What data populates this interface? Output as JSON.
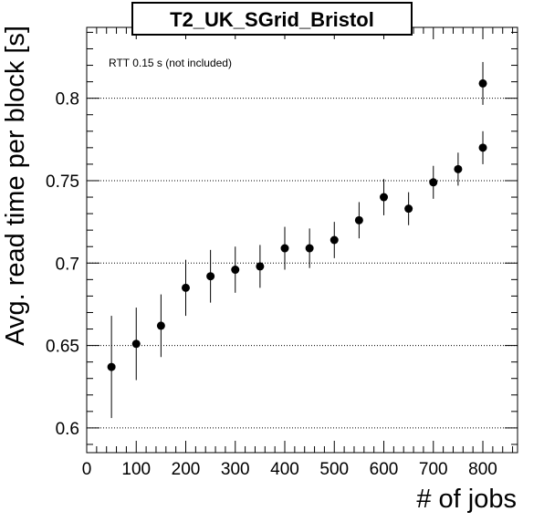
{
  "chart_data": {
    "type": "scatter",
    "title": "T2_UK_SGrid_Bristol",
    "xlabel": "# of jobs",
    "ylabel": "Avg. read time per block [s]",
    "annotation": "RTT 0.15 s (not included)",
    "xlim": [
      0,
      870
    ],
    "ylim": [
      0.585,
      0.843
    ],
    "x_ticks": [
      0,
      100,
      200,
      300,
      400,
      500,
      600,
      700,
      800
    ],
    "y_ticks": [
      0.6,
      0.65,
      0.7,
      0.75,
      0.8
    ],
    "y_tick_labels": [
      "0.6",
      "0.65",
      "0.7",
      "0.75",
      "0.8"
    ],
    "grid": "horizontal dotted",
    "points": [
      {
        "x": 50,
        "y": 0.637,
        "err": 0.031
      },
      {
        "x": 100,
        "y": 0.651,
        "err": 0.022
      },
      {
        "x": 150,
        "y": 0.662,
        "err": 0.019
      },
      {
        "x": 200,
        "y": 0.685,
        "err": 0.017
      },
      {
        "x": 250,
        "y": 0.692,
        "err": 0.016
      },
      {
        "x": 300,
        "y": 0.696,
        "err": 0.014
      },
      {
        "x": 350,
        "y": 0.698,
        "err": 0.013
      },
      {
        "x": 400,
        "y": 0.709,
        "err": 0.013
      },
      {
        "x": 450,
        "y": 0.709,
        "err": 0.012
      },
      {
        "x": 500,
        "y": 0.714,
        "err": 0.011
      },
      {
        "x": 550,
        "y": 0.726,
        "err": 0.011
      },
      {
        "x": 600,
        "y": 0.74,
        "err": 0.011
      },
      {
        "x": 650,
        "y": 0.733,
        "err": 0.01
      },
      {
        "x": 700,
        "y": 0.749,
        "err": 0.01
      },
      {
        "x": 750,
        "y": 0.757,
        "err": 0.01
      },
      {
        "x": 800,
        "y": 0.77,
        "err": 0.01
      },
      {
        "x": 800,
        "y": 0.809,
        "err": 0.013
      }
    ],
    "colors": {
      "marker": "#000000",
      "axis": "#000000",
      "grid": "#000000"
    }
  }
}
